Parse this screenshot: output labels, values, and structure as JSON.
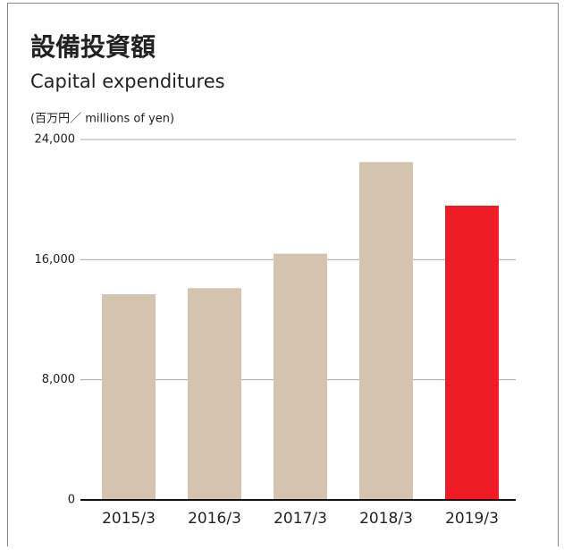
{
  "chart_data": {
    "type": "bar",
    "title": "設備投資額",
    "subtitle": "Capital expenditures",
    "y_label": "(百万円／ millions of yen)",
    "categories": [
      "2015/3",
      "2016/3",
      "2017/3",
      "2018/3",
      "2019/3"
    ],
    "values": [
      13700,
      14100,
      16400,
      22500,
      19600
    ],
    "colors": [
      "#d5c4ad",
      "#d5c4ad",
      "#d5c4ad",
      "#d5c4ad",
      "#ee1c25"
    ],
    "ylim": [
      0,
      24000
    ],
    "yticks": [
      0,
      {
        "value": 8000,
        "label": "8,000"
      },
      {
        "value": 16000,
        "label": "16,000"
      },
      {
        "value": 24000,
        "label": "24,000"
      }
    ],
    "grid": true
  }
}
